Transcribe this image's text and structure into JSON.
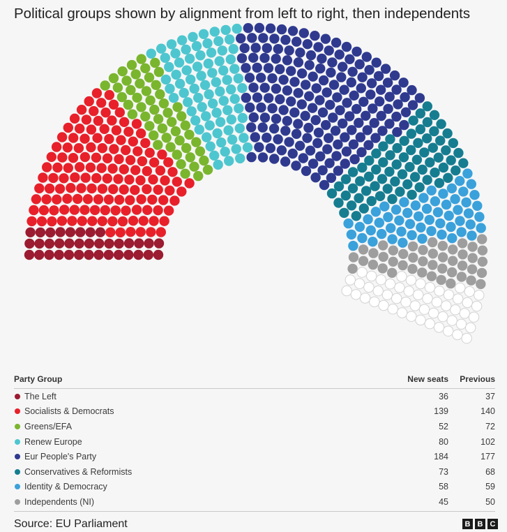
{
  "title": "Political groups shown by alignment from left to right, then independents",
  "table": {
    "headers": {
      "group": "Party Group",
      "new": "New seats",
      "previous": "Previous"
    },
    "rows": [
      {
        "name": "The Left",
        "new": "36",
        "previous": "37",
        "color": "#9b1b30"
      },
      {
        "name": "Socialists & Democrats",
        "new": "139",
        "previous": "140",
        "color": "#e8202a"
      },
      {
        "name": "Greens/EFA",
        "new": "52",
        "previous": "72",
        "color": "#7ab52e"
      },
      {
        "name": "Renew Europe",
        "new": "80",
        "previous": "102",
        "color": "#4ec6cf"
      },
      {
        "name": "Eur People's Party",
        "new": "184",
        "previous": "177",
        "color": "#2f3a8f"
      },
      {
        "name": "Conservatives & Reformists",
        "new": "73",
        "previous": "68",
        "color": "#167d90"
      },
      {
        "name": "Identity & Democracy",
        "new": "58",
        "previous": "59",
        "color": "#3aa1db"
      },
      {
        "name": "Independents (NI)",
        "new": "45",
        "previous": "50",
        "color": "#9e9e9e"
      }
    ]
  },
  "source": "Source: EU Parliament",
  "logo": [
    "B",
    "B",
    "C"
  ],
  "chart_data": {
    "type": "hemicycle",
    "series": [
      {
        "name": "The Left",
        "values": [
          36
        ],
        "color": "#9b1b30"
      },
      {
        "name": "Socialists & Democrats",
        "values": [
          139
        ],
        "color": "#e8202a"
      },
      {
        "name": "Greens/EFA",
        "values": [
          52
        ],
        "color": "#7ab52e"
      },
      {
        "name": "Renew Europe",
        "values": [
          80
        ],
        "color": "#4ec6cf"
      },
      {
        "name": "Eur People's Party",
        "values": [
          184
        ],
        "color": "#2f3a8f"
      },
      {
        "name": "Conservatives & Reformists",
        "values": [
          73
        ],
        "color": "#167d90"
      },
      {
        "name": "Identity & Democracy",
        "values": [
          58
        ],
        "color": "#3aa1db"
      },
      {
        "name": "Independents (NI)",
        "values": [
          45
        ],
        "color": "#9e9e9e"
      }
    ],
    "unallocated": {
      "values": [
        53
      ],
      "color": "#ffffff"
    },
    "total_seats": 720,
    "legend": "table-below"
  }
}
